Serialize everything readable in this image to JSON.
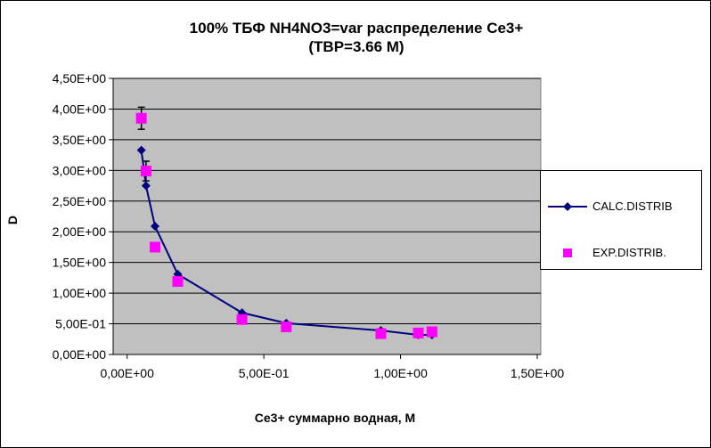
{
  "chart_data": {
    "type": "scatter",
    "title_line1": "100%  ТБФ  NH4NO3=var распределение Ce3+",
    "title_line2": "(TBP=3.66 M)",
    "xlabel": "Ce3+ суммарно   водная, M",
    "ylabel": "D",
    "xlim": [
      0,
      1.5
    ],
    "ylim": [
      0,
      4.5
    ],
    "xticks": [
      0,
      0.5,
      1.0,
      1.5
    ],
    "xtick_labels": [
      "0,00E+00",
      "5,00E-01",
      "1,00E+00",
      "1,50E+00"
    ],
    "yticks": [
      0,
      0.5,
      1,
      1.5,
      2,
      2.5,
      3,
      3.5,
      4,
      4.5
    ],
    "ytick_labels": [
      "0,00E+00",
      "5,00E-01",
      "1,00E+00",
      "1,50E+00",
      "2,00E+00",
      "2,50E+00",
      "3,00E+00",
      "3,50E+00",
      "4,00E+00",
      "4,50E+00"
    ],
    "grid": "horizontal",
    "legend_position": "right",
    "series": [
      {
        "name": "CALC.DISTRIB",
        "type": "line-diamond",
        "color": "#000080",
        "x": [
          0.052,
          0.069,
          0.102,
          0.185,
          0.42,
          0.582,
          0.928,
          1.065,
          1.115
        ],
        "y": [
          3.33,
          2.75,
          2.09,
          1.31,
          0.68,
          0.51,
          0.39,
          0.32,
          0.32
        ]
      },
      {
        "name": "EXP.DISTRIB.",
        "type": "square",
        "color": "#FF00FF",
        "x": [
          0.052,
          0.069,
          0.102,
          0.185,
          0.42,
          0.582,
          0.928,
          1.065,
          1.115
        ],
        "y": [
          3.85,
          2.99,
          1.75,
          1.19,
          0.57,
          0.45,
          0.34,
          0.35,
          0.37
        ],
        "error": [
          0.18,
          0.16,
          0.06,
          0,
          0,
          0,
          0,
          0,
          0
        ]
      }
    ]
  }
}
